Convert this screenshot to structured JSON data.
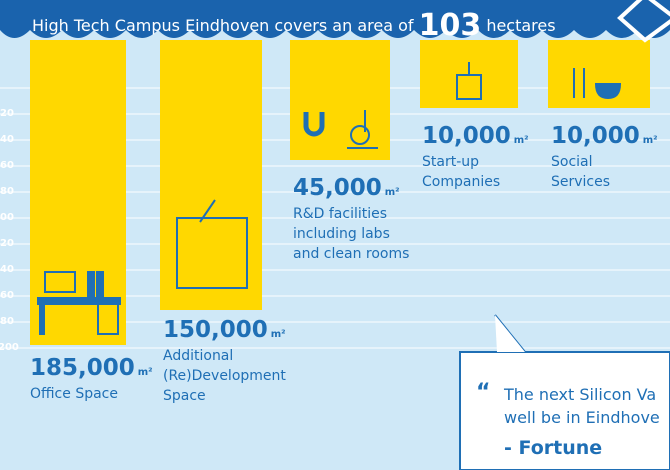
{
  "header": {
    "title": "High Tech Campus Eindhoven covers an area of",
    "highlight": "103",
    "unit": "hectares"
  },
  "axis_labels": [
    "20",
    "40",
    "60",
    "80",
    "00",
    "20",
    "40",
    "60",
    "80",
    "200"
  ],
  "items": [
    {
      "value": "185,000",
      "unit": "m²",
      "label": [
        "Office Space"
      ]
    },
    {
      "value": "150,000",
      "unit": "m²",
      "label": [
        "Additional",
        "(Re)Development",
        "Space"
      ]
    },
    {
      "value": "45,000",
      "unit": "m²",
      "label": [
        "R&D facilities",
        "including labs",
        "and clean rooms"
      ]
    },
    {
      "value": "10,000",
      "unit": "m²",
      "label": [
        "Start-up",
        "Companies"
      ]
    },
    {
      "value": "10,000",
      "unit": "m²",
      "label": [
        "Social",
        "Services"
      ]
    }
  ],
  "quote": {
    "lines": [
      "The next Silicon Va",
      "well be in Eindhove"
    ],
    "source": "- Fortune"
  }
}
